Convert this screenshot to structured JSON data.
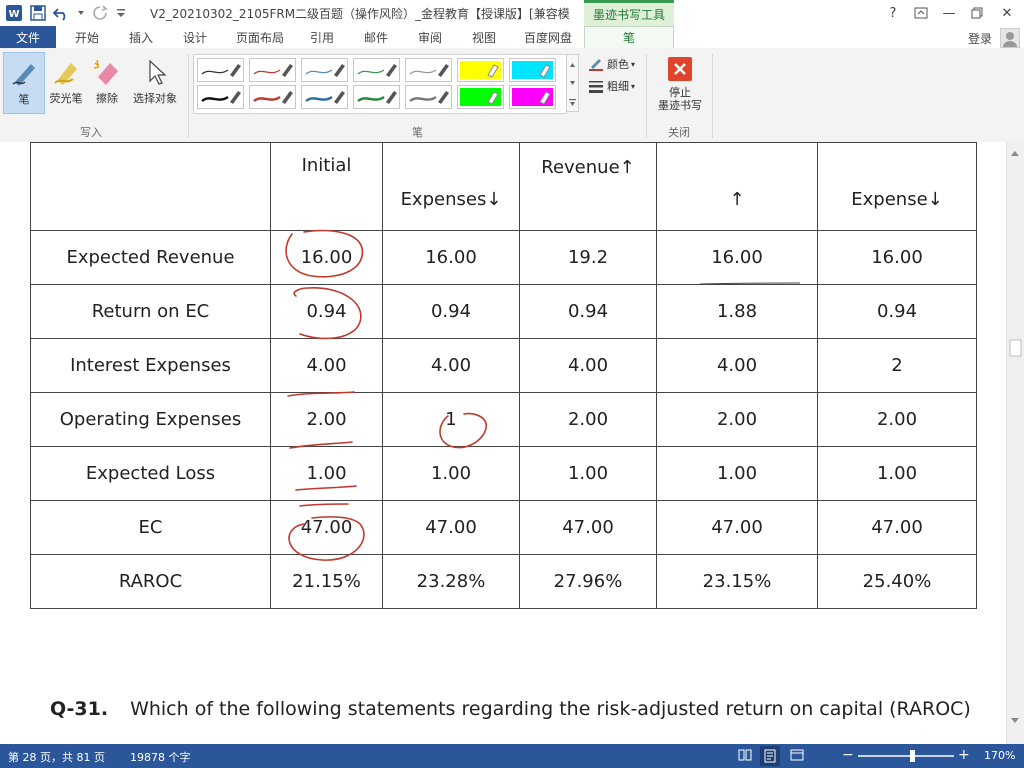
{
  "titlebar": {
    "title": "V2_20210302_2105FRM二级百题（操作风险）_金程教育【授课版】[兼容模...",
    "context_tab_group": "墨迹书写工具",
    "help": "?",
    "minimize": "—",
    "close": "✕"
  },
  "tabs": [
    {
      "label": "文件"
    },
    {
      "label": "开始"
    },
    {
      "label": "插入"
    },
    {
      "label": "设计"
    },
    {
      "label": "页面布局"
    },
    {
      "label": "引用"
    },
    {
      "label": "邮件"
    },
    {
      "label": "审阅"
    },
    {
      "label": "视图"
    },
    {
      "label": "百度网盘"
    },
    {
      "label": "笔"
    }
  ],
  "account": {
    "login": "登录"
  },
  "ribbon": {
    "write_group": {
      "label": "写入",
      "pen": "笔",
      "highlighter": "荧光笔",
      "eraser": "擦除",
      "select": "选择对象"
    },
    "pens_group": {
      "label": "笔",
      "color": "颜色",
      "thickness": "粗细",
      "pens": [
        {
          "color": "#333333",
          "style": "thin"
        },
        {
          "color": "#c0392b",
          "style": "thin"
        },
        {
          "color": "#5b8bb5",
          "style": "thin"
        },
        {
          "color": "#3a9a52",
          "style": "thin"
        },
        {
          "color": "#999999",
          "style": "thin"
        },
        {
          "color": "#ffff00",
          "style": "highlighter"
        },
        {
          "color": "#00e5ff",
          "style": "highlighter"
        },
        {
          "color": "#111111",
          "style": "thick"
        },
        {
          "color": "#c0392b",
          "style": "thick"
        },
        {
          "color": "#2e6da4",
          "style": "thick"
        },
        {
          "color": "#1e8a3a",
          "style": "thick"
        },
        {
          "color": "#777777",
          "style": "thick"
        },
        {
          "color": "#00ff00",
          "style": "highlighter"
        },
        {
          "color": "#ff00ff",
          "style": "highlighter"
        }
      ]
    },
    "close_group": {
      "label": "关闭",
      "stop_line1": "停止",
      "stop_line2": "墨迹书写"
    }
  },
  "table": {
    "header": {
      "row_label": "",
      "cols": [
        "Initial",
        "Expenses↓",
        "Revenue↑",
        "↑",
        "Expense↓"
      ]
    },
    "rows": [
      {
        "label": "Expected Revenue",
        "values": [
          "16.00",
          "16.00",
          "19.2",
          "16.00",
          "16.00"
        ]
      },
      {
        "label": "Return on EC",
        "values": [
          "0.94",
          "0.94",
          "0.94",
          "1.88",
          "0.94"
        ]
      },
      {
        "label": "Interest Expenses",
        "values": [
          "4.00",
          "4.00",
          "4.00",
          "4.00",
          "2"
        ]
      },
      {
        "label": "Operating Expenses",
        "values": [
          "2.00",
          "1",
          "2.00",
          "2.00",
          "2.00"
        ]
      },
      {
        "label": "Expected Loss",
        "values": [
          "1.00",
          "1.00",
          "1.00",
          "1.00",
          "1.00"
        ]
      },
      {
        "label": "EC",
        "values": [
          "47.00",
          "47.00",
          "47.00",
          "47.00",
          "47.00"
        ]
      },
      {
        "label": "RAROC",
        "values": [
          "21.15%",
          "23.28%",
          "27.96%",
          "23.15%",
          "25.40%"
        ]
      }
    ]
  },
  "question": {
    "number": "Q-31.",
    "text": "Which of the following statements regarding the risk-adjusted return on capital (RAROC)"
  },
  "status": {
    "page": "第 28 页，共 81 页",
    "words": "19878 个字",
    "zoom": "170%",
    "zoom_minus": "−",
    "zoom_plus": "+"
  },
  "colors": {
    "word_blue": "#2b579a",
    "ink_red": "#c0392b",
    "context_green": "#1e7a34"
  }
}
